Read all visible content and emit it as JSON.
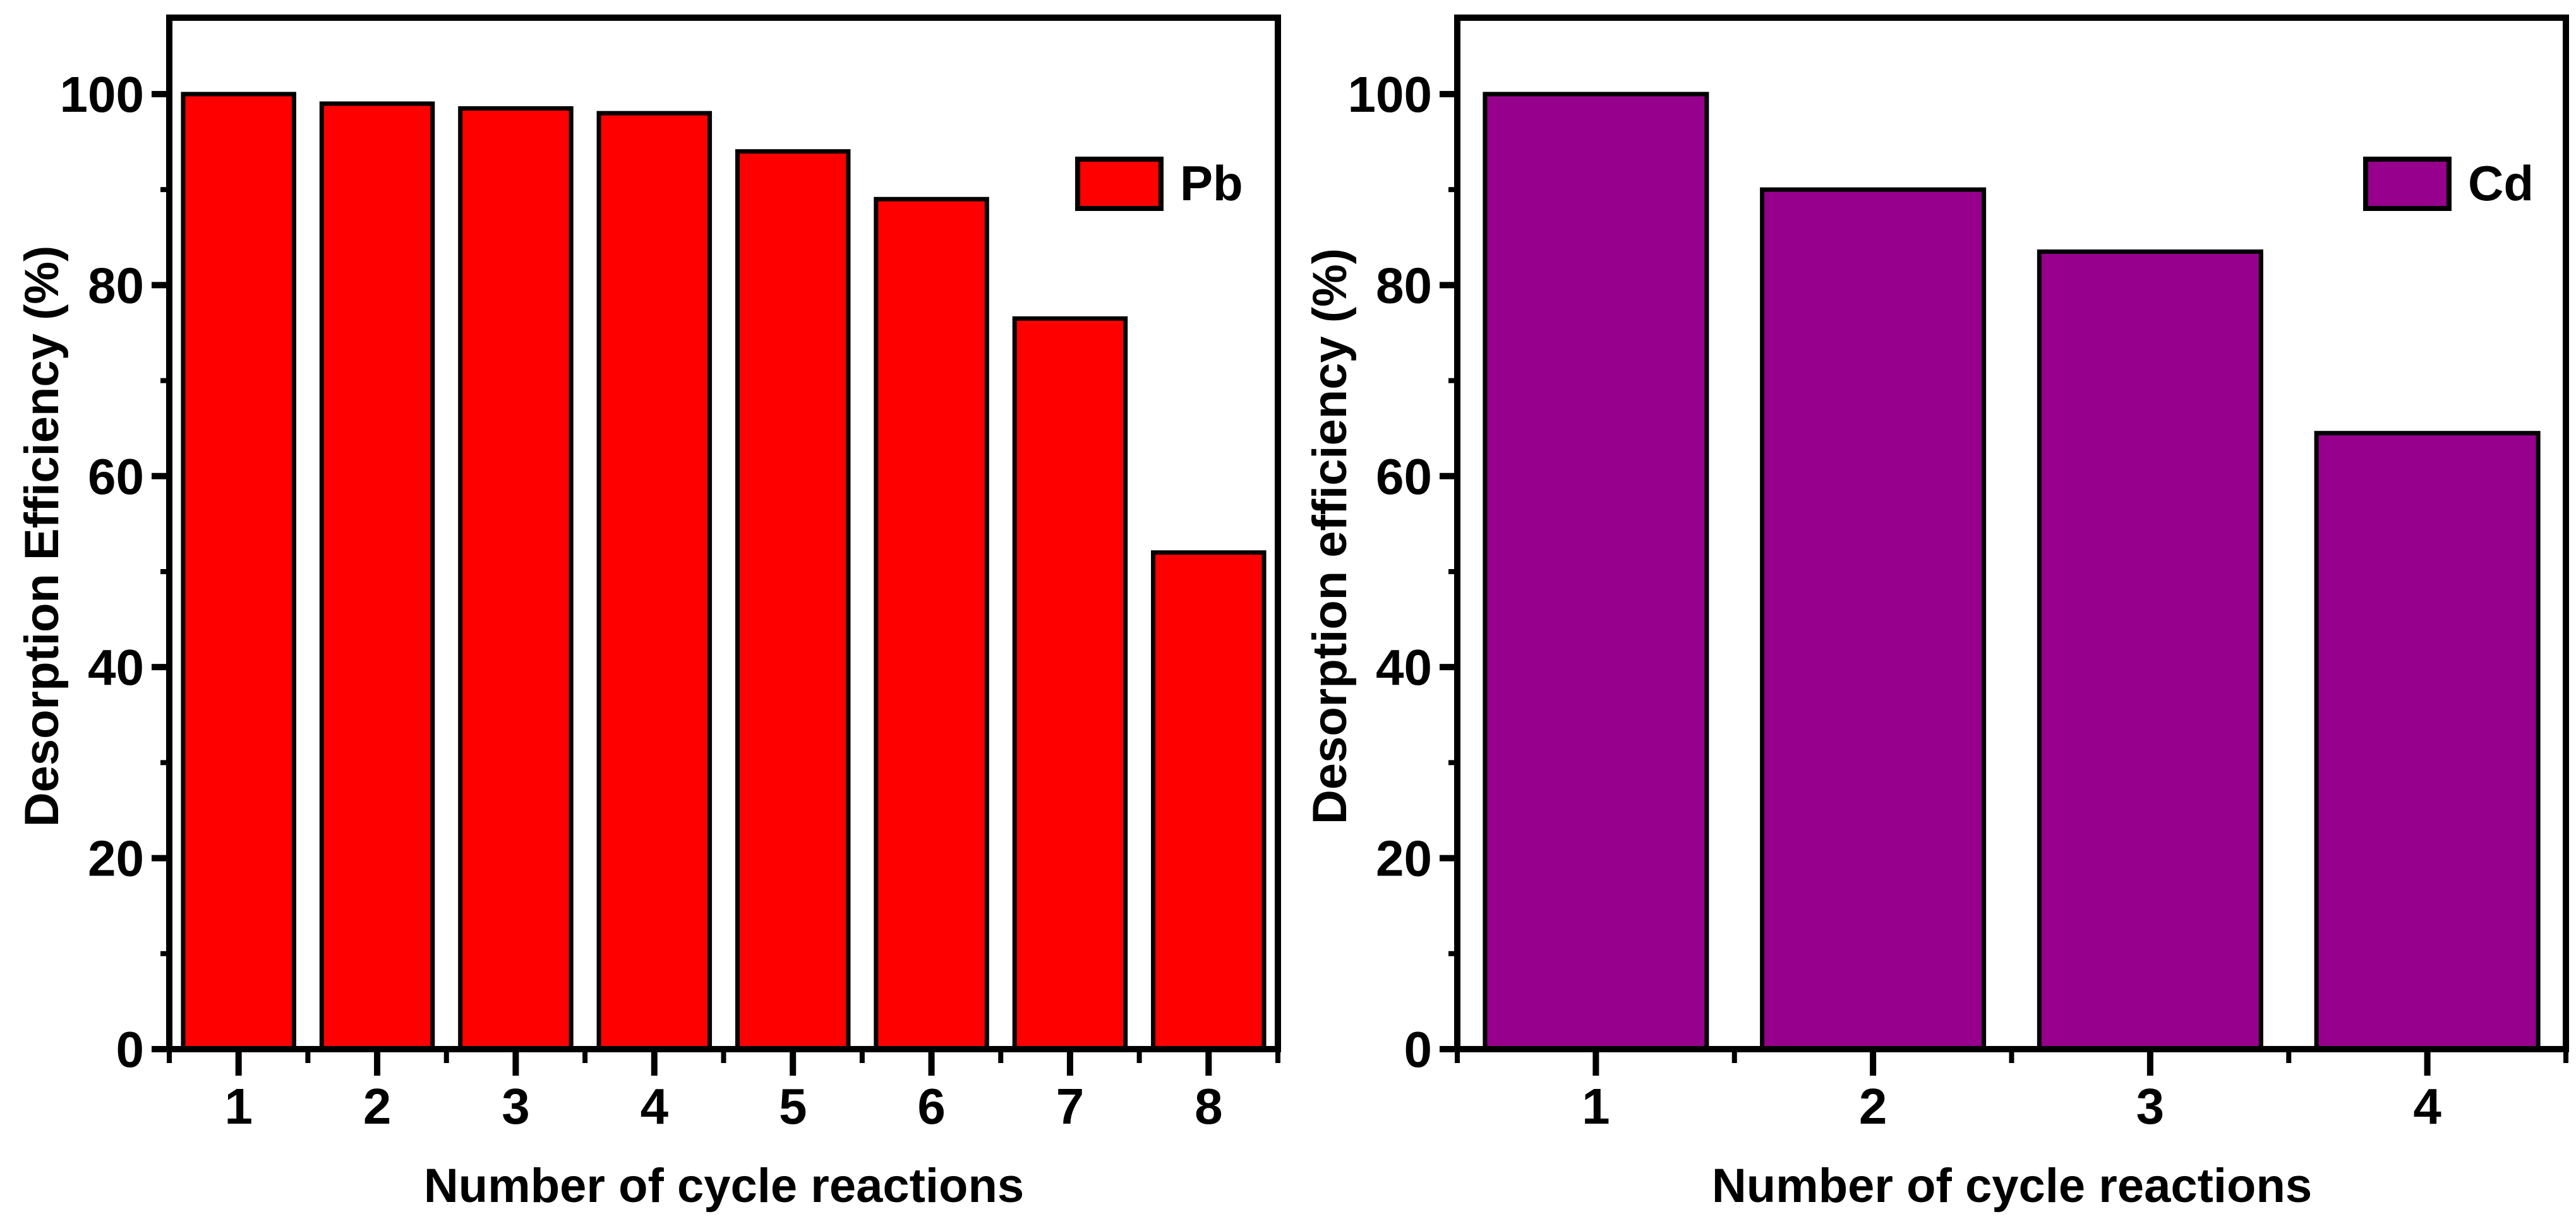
{
  "figure_background": "#ffffff",
  "chart_data": [
    {
      "type": "bar",
      "title": "",
      "xlabel": "Number of cycle reactions",
      "ylabel": "Desorption Efficiency (%)",
      "categories": [
        "1",
        "2",
        "3",
        "4",
        "5",
        "6",
        "7",
        "8"
      ],
      "series": [
        {
          "name": "Pb",
          "values": [
            100,
            99,
            98.5,
            98,
            94,
            89,
            76.5,
            52
          ]
        }
      ],
      "ylim": [
        0,
        108
      ],
      "y_major_ticks": [
        0,
        20,
        40,
        60,
        80,
        100
      ],
      "y_minor_ticks": [
        10,
        30,
        50,
        70,
        90
      ],
      "grid": false,
      "legend_position": "top-right-inside",
      "bar_color": "#ff0000",
      "bar_border_color": "#000000",
      "axis_color": "#000000"
    },
    {
      "type": "bar",
      "title": "",
      "xlabel": "Number of cycle reactions",
      "ylabel": "Desorption efficiency (%)",
      "categories": [
        "1",
        "2",
        "3",
        "4"
      ],
      "series": [
        {
          "name": "Cd",
          "values": [
            100,
            90,
            83.5,
            64.5
          ]
        }
      ],
      "ylim": [
        0,
        108
      ],
      "y_major_ticks": [
        0,
        20,
        40,
        60,
        80,
        100
      ],
      "y_minor_ticks": [
        10,
        30,
        50,
        70,
        90
      ],
      "grid": false,
      "legend_position": "top-right-inside",
      "bar_color": "#97008c",
      "bar_border_color": "#000000",
      "axis_color": "#000000"
    }
  ]
}
